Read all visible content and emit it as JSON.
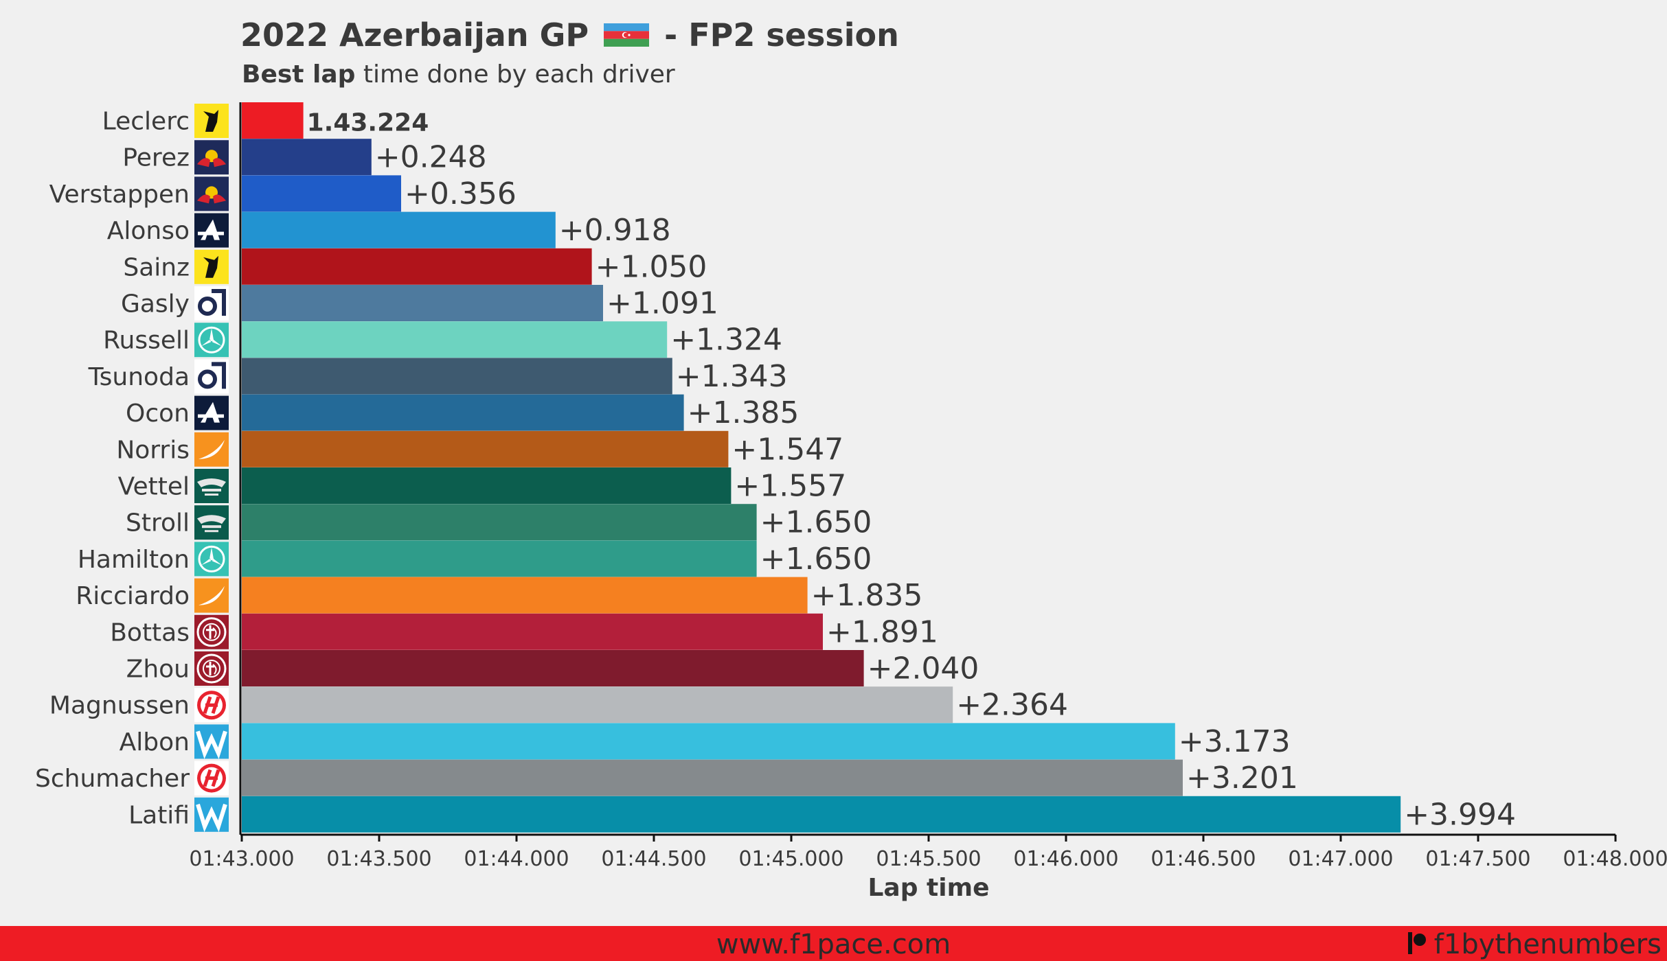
{
  "title": {
    "main": "2022 Azerbaijan GP",
    "session": "- FP2 session"
  },
  "subtitle": {
    "bold": "Best lap",
    "rest": "time done by each driver"
  },
  "footer": {
    "url": "www.f1pace.com",
    "handle": "f1bythenumbers"
  },
  "colors": {
    "footer": "#ee1c24",
    "background": "#f0f0f0",
    "text": "#3a3a3a"
  },
  "chart_data": {
    "type": "bar",
    "orientation": "horizontal",
    "xlabel": "Lap time",
    "xlim": [
      103.0,
      108.0
    ],
    "x_ticks": [
      {
        "value": 103.0,
        "label": "01:43.000"
      },
      {
        "value": 103.5,
        "label": "01:43.500"
      },
      {
        "value": 104.0,
        "label": "01:44.000"
      },
      {
        "value": 104.5,
        "label": "01:44.500"
      },
      {
        "value": 105.0,
        "label": "01:45.000"
      },
      {
        "value": 105.5,
        "label": "01:45.500"
      },
      {
        "value": 106.0,
        "label": "01:46.000"
      },
      {
        "value": 106.5,
        "label": "01:46.500"
      },
      {
        "value": 107.0,
        "label": "01:47.000"
      },
      {
        "value": 107.5,
        "label": "01:47.500"
      },
      {
        "value": 108.0,
        "label": "01:48.000"
      }
    ],
    "drivers": [
      {
        "name": "Leclerc",
        "team_icon": "ferrari-logo-icon",
        "lap_time": 103.224,
        "label": "1.43.224",
        "color": "#ed1c24"
      },
      {
        "name": "Perez",
        "team_icon": "red-bull-logo-icon",
        "lap_time": 103.472,
        "label": "+0.248",
        "color": "#243f8a"
      },
      {
        "name": "Verstappen",
        "team_icon": "red-bull-logo-icon",
        "lap_time": 103.58,
        "label": "+0.356",
        "color": "#1f5cc8"
      },
      {
        "name": "Alonso",
        "team_icon": "alpine-logo-icon",
        "lap_time": 104.142,
        "label": "+0.918",
        "color": "#2293d1"
      },
      {
        "name": "Sainz",
        "team_icon": "ferrari-logo-icon",
        "lap_time": 104.274,
        "label": "+1.050",
        "color": "#b0141b"
      },
      {
        "name": "Gasly",
        "team_icon": "alphatauri-logo-icon",
        "lap_time": 104.315,
        "label": "+1.091",
        "color": "#4e7a9e"
      },
      {
        "name": "Russell",
        "team_icon": "mercedes-logo-icon",
        "lap_time": 104.548,
        "label": "+1.324",
        "color": "#6dd3c0"
      },
      {
        "name": "Tsunoda",
        "team_icon": "alphatauri-logo-icon",
        "lap_time": 104.567,
        "label": "+1.343",
        "color": "#3e5a70"
      },
      {
        "name": "Ocon",
        "team_icon": "alpine-logo-icon",
        "lap_time": 104.609,
        "label": "+1.385",
        "color": "#246a98"
      },
      {
        "name": "Norris",
        "team_icon": "mclaren-logo-icon",
        "lap_time": 104.771,
        "label": "+1.547",
        "color": "#b45a18"
      },
      {
        "name": "Vettel",
        "team_icon": "aston-martin-logo-icon",
        "lap_time": 104.781,
        "label": "+1.557",
        "color": "#0c5e4e"
      },
      {
        "name": "Stroll",
        "team_icon": "aston-martin-logo-icon",
        "lap_time": 104.874,
        "label": "+1.650",
        "color": "#2d8069"
      },
      {
        "name": "Hamilton",
        "team_icon": "mercedes-logo-icon",
        "lap_time": 104.874,
        "label": "+1.650",
        "color": "#2f9c8a"
      },
      {
        "name": "Ricciardo",
        "team_icon": "mclaren-logo-icon",
        "lap_time": 105.059,
        "label": "+1.835",
        "color": "#f58020"
      },
      {
        "name": "Bottas",
        "team_icon": "alfa-romeo-logo-icon",
        "lap_time": 105.115,
        "label": "+1.891",
        "color": "#b31f3a"
      },
      {
        "name": "Zhou",
        "team_icon": "alfa-romeo-logo-icon",
        "lap_time": 105.264,
        "label": "+2.040",
        "color": "#7f1b2d"
      },
      {
        "name": "Magnussen",
        "team_icon": "haas-logo-icon",
        "lap_time": 105.588,
        "label": "+2.364",
        "color": "#b6b9bc"
      },
      {
        "name": "Albon",
        "team_icon": "williams-logo-icon",
        "lap_time": 106.397,
        "label": "+3.173",
        "color": "#37bfde"
      },
      {
        "name": "Schumacher",
        "team_icon": "haas-logo-icon",
        "lap_time": 106.425,
        "label": "+3.201",
        "color": "#858a8d"
      },
      {
        "name": "Latifi",
        "team_icon": "williams-logo-icon",
        "lap_time": 107.218,
        "label": "+3.994",
        "color": "#078ea8"
      }
    ]
  }
}
